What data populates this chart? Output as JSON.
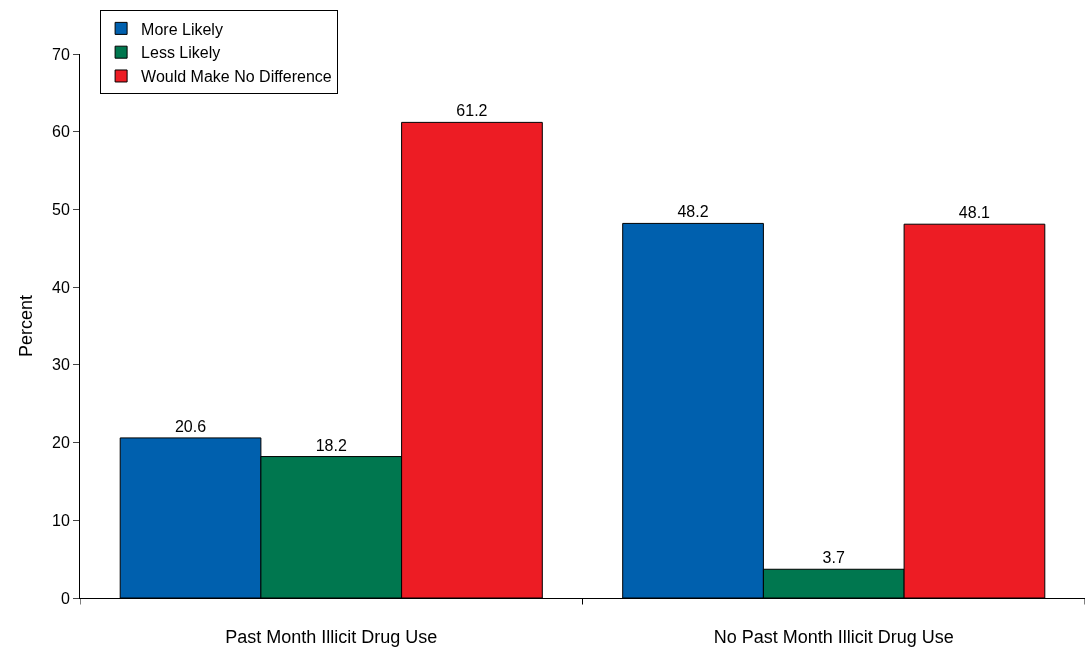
{
  "chart_data": {
    "type": "bar",
    "ylabel": "Percent",
    "categories": [
      "Past Month Illicit Drug Use",
      "No Past Month Illicit Drug Use"
    ],
    "series": [
      {
        "name": "More Likely",
        "color": "#0060ae",
        "values": [
          20.6,
          48.2
        ]
      },
      {
        "name": "Less Likely",
        "color": "#00774f",
        "values": [
          18.2,
          3.7
        ]
      },
      {
        "name": "Would Make No Difference",
        "color": "#ed1c24",
        "values": [
          61.2,
          48.1
        ]
      }
    ],
    "ylim": [
      0,
      70
    ],
    "yticks": [
      0,
      10,
      20,
      30,
      40,
      50,
      60,
      70
    ],
    "grid": false,
    "legend": "top left",
    "data_labels": true
  }
}
